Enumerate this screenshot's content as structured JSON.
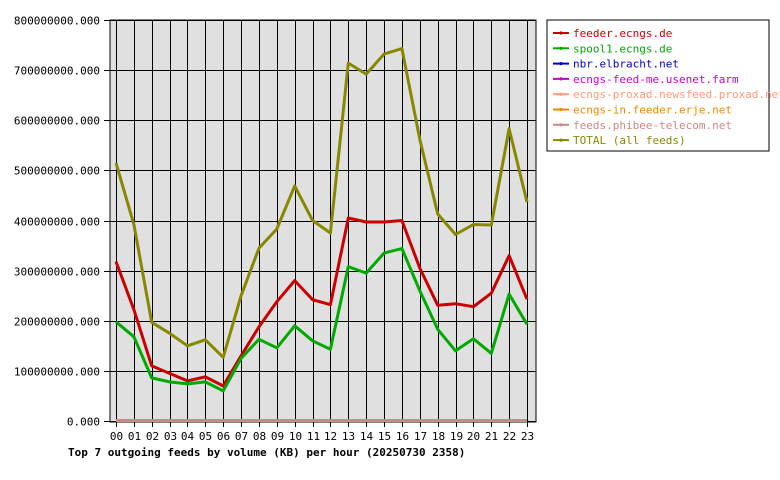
{
  "chart_data": {
    "type": "line",
    "title": "Top 7 outgoing feeds by volume (KB) per hour (20250730 2358)",
    "x": [
      "00",
      "01",
      "02",
      "03",
      "04",
      "05",
      "06",
      "07",
      "08",
      "09",
      "10",
      "11",
      "12",
      "13",
      "14",
      "15",
      "16",
      "17",
      "18",
      "19",
      "20",
      "21",
      "22",
      "23"
    ],
    "ylim": [
      0,
      800000000
    ],
    "yticks": [
      0,
      100000000,
      200000000,
      300000000,
      400000000,
      500000000,
      600000000,
      700000000,
      800000000
    ],
    "ytick_labels": [
      "0.000",
      "100000000.000",
      "200000000.000",
      "300000000.000",
      "400000000.000",
      "500000000.000",
      "600000000.000",
      "700000000.000",
      "800000000.000"
    ],
    "grid": true,
    "legend_position": "right",
    "series": [
      {
        "name": "feeder.ecngs.de",
        "color": "#cc0000",
        "values": [
          318000000,
          222000000,
          110000000,
          95000000,
          80000000,
          88000000,
          70000000,
          130000000,
          188000000,
          238000000,
          280000000,
          242000000,
          232000000,
          405000000,
          397000000,
          397000000,
          400000000,
          305000000,
          231000000,
          234000000,
          228000000,
          255000000,
          330000000,
          243000000
        ]
      },
      {
        "name": "spool1.ecngs.de",
        "color": "#00aa00",
        "values": [
          198000000,
          168000000,
          86000000,
          78000000,
          74000000,
          78000000,
          60000000,
          125000000,
          163000000,
          146000000,
          190000000,
          160000000,
          143000000,
          308000000,
          295000000,
          335000000,
          344000000,
          260000000,
          183000000,
          140000000,
          164000000,
          135000000,
          253000000,
          193000000
        ]
      },
      {
        "name": "nbr.elbracht.net",
        "color": "#0000cc",
        "values": [
          1000000,
          1000000,
          1000000,
          1000000,
          1000000,
          1000000,
          1000000,
          1000000,
          1000000,
          1000000,
          1000000,
          1000000,
          1000000,
          1000000,
          1000000,
          1000000,
          1000000,
          1000000,
          1000000,
          1000000,
          1000000,
          1000000,
          1000000,
          1000000
        ]
      },
      {
        "name": "ecngs-feed-me.usenet.farm",
        "color": "#cc00cc",
        "values": [
          1000000,
          1000000,
          1000000,
          1000000,
          1000000,
          1000000,
          1000000,
          1000000,
          1000000,
          1000000,
          1000000,
          1000000,
          1000000,
          1000000,
          1000000,
          1000000,
          1000000,
          1000000,
          1000000,
          1000000,
          1000000,
          1000000,
          1000000,
          1000000
        ]
      },
      {
        "name": "ecngs-proxad.newsfeed.proxad.net",
        "color": "#ff9977",
        "values": [
          1000000,
          1000000,
          1000000,
          1000000,
          1000000,
          1000000,
          1000000,
          1000000,
          1000000,
          1000000,
          1000000,
          1000000,
          1000000,
          1000000,
          1000000,
          1000000,
          1000000,
          1000000,
          1000000,
          1000000,
          1000000,
          1000000,
          1000000,
          1000000
        ]
      },
      {
        "name": "ecngs-in.feeder.erje.net",
        "color": "#ee8800",
        "values": [
          1000000,
          1000000,
          1000000,
          1000000,
          1000000,
          1000000,
          1000000,
          1000000,
          1000000,
          1000000,
          1000000,
          1000000,
          1000000,
          1000000,
          1000000,
          1000000,
          1000000,
          1000000,
          1000000,
          1000000,
          1000000,
          1000000,
          1000000,
          1000000
        ]
      },
      {
        "name": "feeds.phibee-telecom.net",
        "color": "#cc8888",
        "values": [
          1000000,
          1000000,
          1000000,
          1000000,
          1000000,
          1000000,
          1000000,
          1000000,
          1000000,
          1000000,
          1000000,
          1000000,
          1000000,
          1000000,
          1000000,
          1000000,
          1000000,
          1000000,
          1000000,
          1000000,
          1000000,
          1000000,
          1000000,
          1000000
        ]
      },
      {
        "name": "TOTAL (all feeds)",
        "color": "#888800",
        "values": [
          515000000,
          392000000,
          197000000,
          175000000,
          150000000,
          162000000,
          127000000,
          250000000,
          345000000,
          383000000,
          469000000,
          400000000,
          375000000,
          714000000,
          692000000,
          732000000,
          743000000,
          562000000,
          413000000,
          372000000,
          392000000,
          391000000,
          583000000,
          437000000
        ]
      }
    ]
  }
}
